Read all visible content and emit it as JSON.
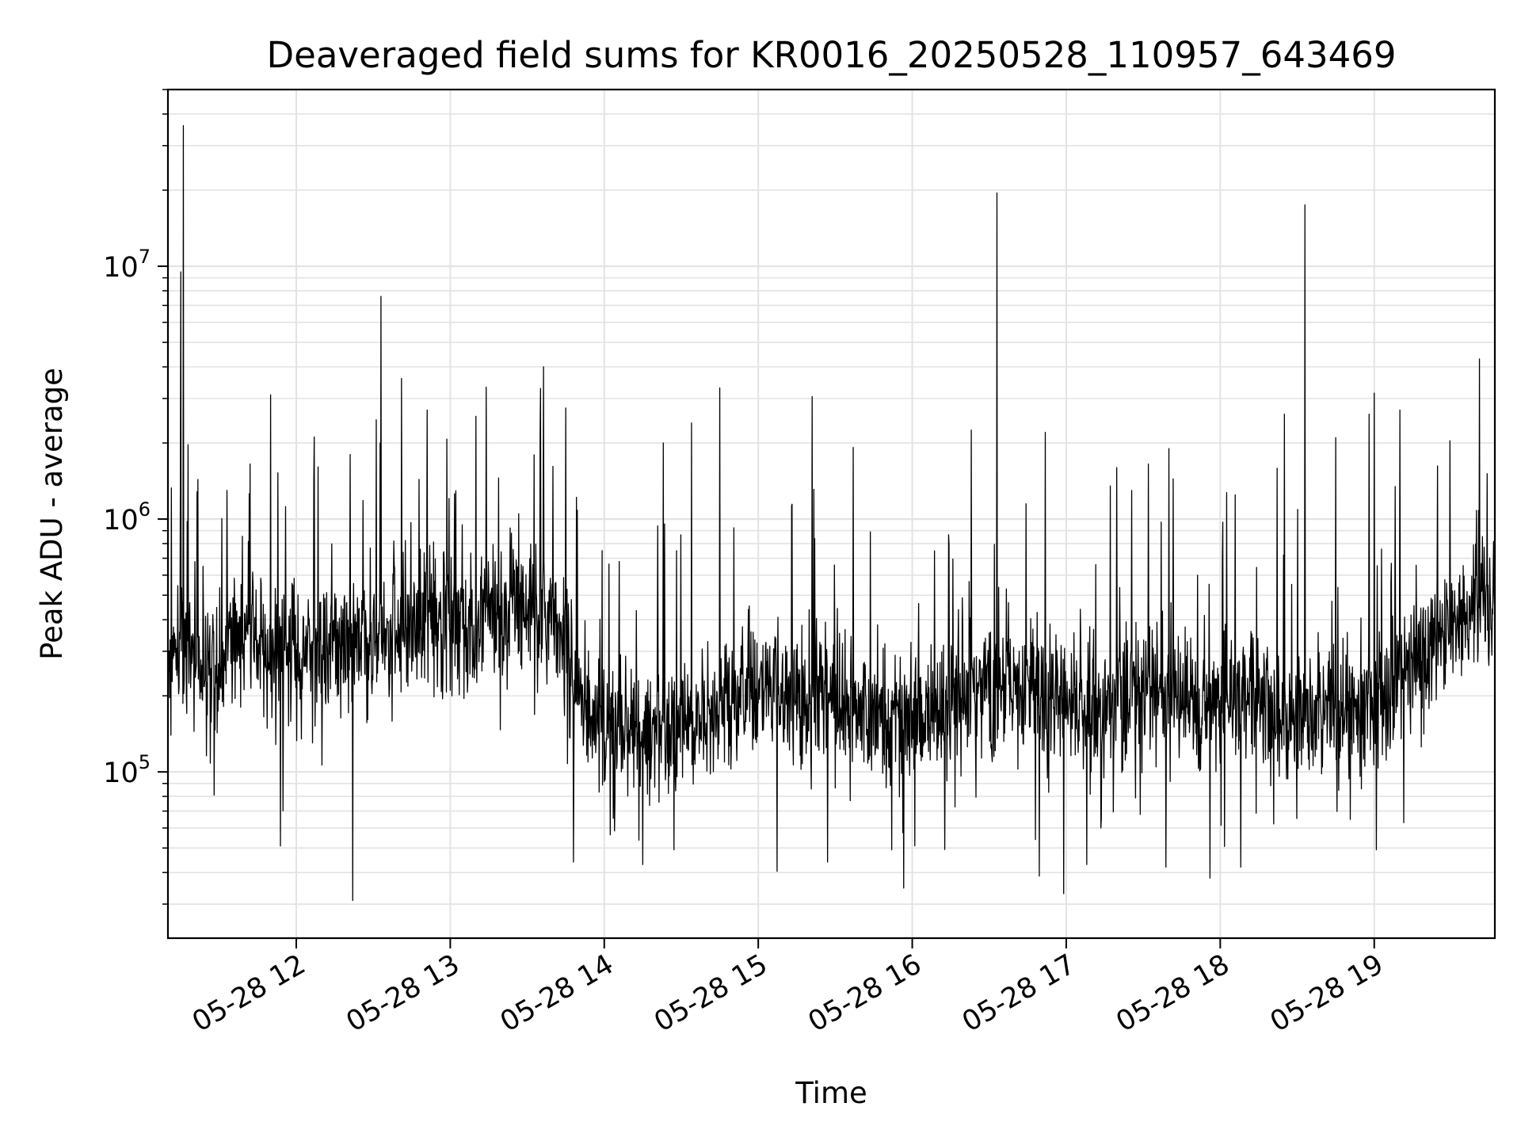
{
  "chart_data": {
    "type": "line",
    "title": "Deaveraged field sums for KR0016_20250528_110957_643469",
    "xlabel": "Time",
    "ylabel": "Peak ADU - average",
    "yscale": "log",
    "ylim": [
      22000,
      50000000
    ],
    "xlim": [
      "2025-05-28 11:10",
      "2025-05-28 19:47"
    ],
    "grid": true,
    "line_color": "#000000",
    "x_ticks": [
      "2025-05-28 12:00",
      "2025-05-28 13:00",
      "2025-05-28 14:00",
      "2025-05-28 15:00",
      "2025-05-28 16:00",
      "2025-05-28 17:00",
      "2025-05-28 18:00",
      "2025-05-28 19:00"
    ],
    "x_tick_labels": [
      "05-28 12",
      "05-28 13",
      "05-28 14",
      "05-28 15",
      "05-28 16",
      "05-28 17",
      "05-28 18",
      "05-28 19"
    ],
    "y_ticks": [
      100000,
      1000000,
      10000000
    ],
    "y_tick_labels": [
      {
        "base": "10",
        "exp": "5"
      },
      {
        "base": "10",
        "exp": "6"
      },
      {
        "base": "10",
        "exp": "7"
      }
    ],
    "series": [
      {
        "x": [
          "2025-05-28 11:10",
          "2025-05-28 11:25",
          "2025-05-28 11:40",
          "2025-05-28 11:55",
          "2025-05-28 12:10",
          "2025-05-28 12:25",
          "2025-05-28 12:40",
          "2025-05-28 12:55",
          "2025-05-28 13:10",
          "2025-05-28 13:25",
          "2025-05-28 13:40",
          "2025-05-28 13:55",
          "2025-05-28 14:10",
          "2025-05-28 14:25",
          "2025-05-28 14:40",
          "2025-05-28 14:55",
          "2025-05-28 15:10",
          "2025-05-28 15:25",
          "2025-05-28 15:40",
          "2025-05-28 15:55",
          "2025-05-28 16:10",
          "2025-05-28 16:25",
          "2025-05-28 16:40",
          "2025-05-28 16:55",
          "2025-05-28 17:10",
          "2025-05-28 17:25",
          "2025-05-28 17:40",
          "2025-05-28 17:55",
          "2025-05-28 18:10",
          "2025-05-28 18:25",
          "2025-05-28 18:40",
          "2025-05-28 18:55",
          "2025-05-28 19:10",
          "2025-05-28 19:25",
          "2025-05-28 19:40",
          "2025-05-28 19:47"
        ],
        "values": [
          300000,
          260000,
          330000,
          280000,
          300000,
          330000,
          380000,
          420000,
          380000,
          480000,
          400000,
          170000,
          150000,
          140000,
          160000,
          220000,
          210000,
          190000,
          170000,
          150000,
          170000,
          200000,
          210000,
          190000,
          180000,
          200000,
          200000,
          180000,
          190000,
          160000,
          180000,
          170000,
          220000,
          330000,
          460000,
          500000
        ]
      }
    ],
    "peaks": [
      {
        "x": "2025-05-28 11:16",
        "y": 36000000
      },
      {
        "x": "2025-05-28 11:15",
        "y": 9500000
      },
      {
        "x": "2025-05-28 11:50",
        "y": 3100000
      },
      {
        "x": "2025-05-28 12:21",
        "y": 1800000
      },
      {
        "x": "2025-05-28 12:33",
        "y": 7600000
      },
      {
        "x": "2025-05-28 12:41",
        "y": 3600000
      },
      {
        "x": "2025-05-28 12:51",
        "y": 2700000
      },
      {
        "x": "2025-05-28 13:10",
        "y": 2550000
      },
      {
        "x": "2025-05-28 13:35",
        "y": 2150000
      },
      {
        "x": "2025-05-28 13:45",
        "y": 2750000
      },
      {
        "x": "2025-05-28 14:23",
        "y": 2000000
      },
      {
        "x": "2025-05-28 14:34",
        "y": 2400000
      },
      {
        "x": "2025-05-28 14:45",
        "y": 3300000
      },
      {
        "x": "2025-05-28 15:21",
        "y": 3050000
      },
      {
        "x": "2025-05-28 15:37",
        "y": 1920000
      },
      {
        "x": "2025-05-28 16:23",
        "y": 2250000
      },
      {
        "x": "2025-05-28 16:33",
        "y": 19500000
      },
      {
        "x": "2025-05-28 17:32",
        "y": 1650000
      },
      {
        "x": "2025-05-28 17:40",
        "y": 1900000
      },
      {
        "x": "2025-05-28 18:25",
        "y": 2600000
      },
      {
        "x": "2025-05-28 18:33",
        "y": 17500000
      },
      {
        "x": "2025-05-28 18:45",
        "y": 2100000
      },
      {
        "x": "2025-05-28 18:58",
        "y": 2600000
      },
      {
        "x": "2025-05-28 19:00",
        "y": 3150000
      },
      {
        "x": "2025-05-28 19:10",
        "y": 2700000
      },
      {
        "x": "2025-05-28 19:41",
        "y": 4300000
      }
    ],
    "dips": [
      {
        "x": "2025-05-28 12:22",
        "y": 31000
      },
      {
        "x": "2025-05-28 13:48",
        "y": 44000
      },
      {
        "x": "2025-05-28 14:15",
        "y": 43000
      },
      {
        "x": "2025-05-28 15:27",
        "y": 44000
      },
      {
        "x": "2025-05-28 16:48",
        "y": 54000
      },
      {
        "x": "2025-05-28 16:59",
        "y": 33000
      },
      {
        "x": "2025-05-28 17:08",
        "y": 43000
      },
      {
        "x": "2025-05-28 17:56",
        "y": 38000
      },
      {
        "x": "2025-05-28 18:08",
        "y": 42000
      }
    ],
    "noise_amplitude": 0.38,
    "sample_interval_seconds": 10,
    "seed": 643469
  }
}
